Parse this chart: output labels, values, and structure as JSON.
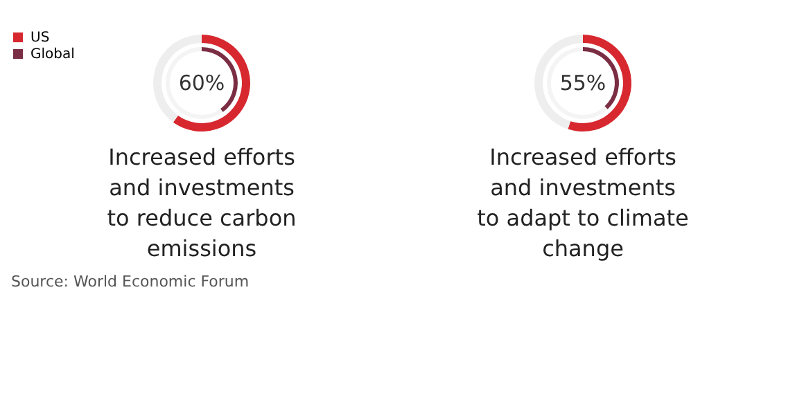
{
  "chart_data": [
    {
      "type": "donut",
      "title": "Increased efforts\nand investments\nto reduce carbon\nemissions",
      "legend": "top left",
      "categories": [
        null,
        null
      ],
      "series": [
        {
          "name": "US",
          "colors": [
            "#d7282f",
            "#eeeeee"
          ],
          "values": [
            60,
            40
          ]
        },
        {
          "name": "Global",
          "colors": [
            "#7b2d43",
            "#f4f4f4"
          ],
          "values": [
            40,
            60
          ]
        }
      ],
      "annotations": [
        "60%"
      ]
    },
    {
      "type": "donut",
      "title": "Increased efforts\nand investments\nto adapt to climate\nchange",
      "categories": [
        null,
        null
      ],
      "series": [
        {
          "colors": [
            "#d7282f",
            "#eeeeee"
          ],
          "values": [
            55,
            45
          ]
        },
        {
          "colors": [
            "#7b2d43",
            "#f4f4f4"
          ],
          "values": [
            38,
            62
          ]
        }
      ],
      "annotations": [
        "55%",
        "Source: World Economic Forum"
      ]
    }
  ]
}
